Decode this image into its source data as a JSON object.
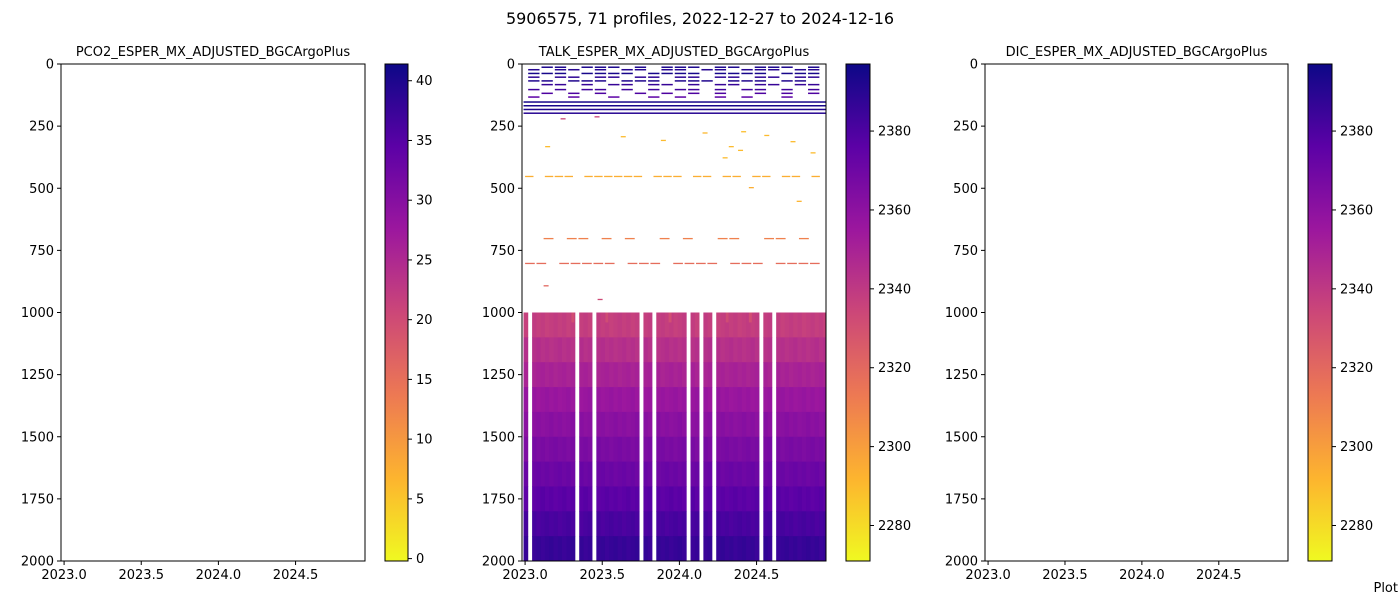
{
  "figure": {
    "suptitle": "5906575, 71 profiles, 2022-12-27 to 2024-12-16",
    "footer_note": "Plot"
  },
  "colormap": {
    "name": "plasma_r",
    "stops": [
      "#f0f921",
      "#fdb42f",
      "#ed7953",
      "#cc4778",
      "#9c179e",
      "#5c01a6",
      "#0d0887"
    ]
  },
  "chart_data": [
    {
      "type": "heatmap",
      "title": "PCO2_ESPER_MX_ADJUSTED_BGCArgoPlus",
      "xlabel": "",
      "ylabel": "",
      "xlim": [
        2022.98,
        2024.95
      ],
      "ylim": [
        2000,
        0
      ],
      "y_inverted": true,
      "xticks": [
        2023.0,
        2023.5,
        2024.0,
        2024.5
      ],
      "xtick_labels": [
        "2023.0",
        "2023.5",
        "2024.0",
        "2024.5"
      ],
      "yticks": [
        0,
        250,
        500,
        750,
        1000,
        1250,
        1500,
        1750,
        2000
      ],
      "ytick_labels": [
        "0",
        "250",
        "500",
        "750",
        "1000",
        "1250",
        "1500",
        "1750",
        "2000"
      ],
      "colorbar": {
        "range": [
          -0.2,
          41.4
        ],
        "ticks": [
          0,
          5,
          10,
          15,
          20,
          25,
          30,
          35,
          40
        ],
        "tick_labels": [
          "0",
          "5",
          "10",
          "15",
          "20",
          "25",
          "30",
          "35",
          "40"
        ]
      },
      "cells": []
    },
    {
      "type": "heatmap",
      "title": "TALK_ESPER_MX_ADJUSTED_BGCArgoPlus",
      "xlabel": "",
      "ylabel": "",
      "xlim": [
        2022.98,
        2024.95
      ],
      "ylim": [
        2000,
        0
      ],
      "y_inverted": true,
      "xticks": [
        2023.0,
        2023.5,
        2024.0,
        2024.5
      ],
      "xtick_labels": [
        "2023.0",
        "2023.5",
        "2024.0",
        "2024.5"
      ],
      "yticks": [
        0,
        250,
        500,
        750,
        1000,
        1250,
        1500,
        1750,
        2000
      ],
      "ytick_labels": [
        "0",
        "250",
        "500",
        "750",
        "1000",
        "1250",
        "1500",
        "1750",
        "2000"
      ],
      "colorbar": {
        "range": [
          2271,
          2397
        ],
        "ticks": [
          2280,
          2300,
          2320,
          2340,
          2360,
          2380
        ],
        "tick_labels": [
          "2280",
          "2300",
          "2320",
          "2340",
          "2360",
          "2380"
        ]
      },
      "profile_time_range": [
        2022.99,
        2024.96
      ],
      "profile_count": 71,
      "missing_profile_times": [
        2023.02,
        2023.35,
        2023.44,
        2023.75,
        2023.83,
        2024.06,
        2024.14,
        2024.22,
        2024.54,
        2024.62
      ],
      "deep_layers": [
        {
          "depth_top": 1000,
          "depth_bottom": 1100,
          "value": 2338
        },
        {
          "depth_top": 1100,
          "depth_bottom": 1200,
          "value": 2344
        },
        {
          "depth_top": 1200,
          "depth_bottom": 1300,
          "value": 2350
        },
        {
          "depth_top": 1300,
          "depth_bottom": 1400,
          "value": 2356
        },
        {
          "depth_top": 1400,
          "depth_bottom": 1500,
          "value": 2361
        },
        {
          "depth_top": 1500,
          "depth_bottom": 1600,
          "value": 2366
        },
        {
          "depth_top": 1600,
          "depth_bottom": 1700,
          "value": 2371
        },
        {
          "depth_top": 1700,
          "depth_bottom": 1800,
          "value": 2376
        },
        {
          "depth_top": 1800,
          "depth_bottom": 1900,
          "value": 2381
        },
        {
          "depth_top": 1900,
          "depth_bottom": 2000,
          "value": 2386
        }
      ],
      "deep_top_variants": [
        {
          "t": 2023.3,
          "value": 2331
        },
        {
          "t": 2023.52,
          "value": 2332
        },
        {
          "t": 2023.93,
          "value": 2331
        },
        {
          "t": 2024.3,
          "value": 2332
        },
        {
          "t": 2024.45,
          "value": 2331
        }
      ],
      "upper_full_lines": [
        {
          "depth": 150,
          "value": 2394
        },
        {
          "depth": 165,
          "value": 2394
        },
        {
          "depth": 180,
          "value": 2392
        },
        {
          "depth": 195,
          "value": 2390
        }
      ],
      "upper_dashed_rows": [
        {
          "depth": 10,
          "value": 2393,
          "t0": 2023.02,
          "t1": 2024.92,
          "on": [
            0,
            1,
            1,
            0,
            1,
            1,
            1,
            0,
            1,
            0,
            1,
            1,
            1,
            0,
            1,
            1,
            0,
            1,
            1,
            1,
            0,
            1
          ]
        },
        {
          "depth": 20,
          "value": 2390,
          "t0": 2023.02,
          "t1": 2024.92,
          "on": [
            1,
            0,
            1,
            1,
            0,
            1,
            0,
            1,
            1,
            0,
            1,
            1,
            0,
            1,
            1,
            0,
            1,
            1,
            1,
            0,
            1,
            1
          ]
        },
        {
          "depth": 35,
          "value": 2394,
          "t0": 2023.02,
          "t1": 2024.92,
          "on": [
            1,
            1,
            1,
            0,
            1,
            1,
            1,
            1,
            0,
            1,
            1,
            1,
            1,
            0,
            1,
            1,
            1,
            1,
            0,
            1,
            1,
            1
          ]
        },
        {
          "depth": 50,
          "value": 2388,
          "t0": 2023.02,
          "t1": 2024.92,
          "on": [
            1,
            0,
            1,
            1,
            0,
            1,
            1,
            0,
            1,
            1,
            0,
            1,
            1,
            0,
            1,
            1,
            0,
            1,
            1,
            0,
            1,
            1
          ]
        },
        {
          "depth": 65,
          "value": 2392,
          "t0": 2023.02,
          "t1": 2024.92,
          "on": [
            1,
            1,
            0,
            1,
            1,
            1,
            0,
            1,
            1,
            1,
            0,
            1,
            1,
            1,
            0,
            1,
            1,
            1,
            0,
            1,
            1,
            0
          ]
        },
        {
          "depth": 80,
          "value": 2386,
          "t0": 2023.02,
          "t1": 2024.92,
          "on": [
            0,
            1,
            1,
            0,
            1,
            0,
            1,
            1,
            0,
            1,
            1,
            0,
            1,
            0,
            1,
            1,
            0,
            1,
            1,
            0,
            1,
            1
          ]
        },
        {
          "depth": 100,
          "value": 2383,
          "t0": 2023.02,
          "t1": 2024.92,
          "on": [
            1,
            0,
            1,
            0,
            1,
            1,
            0,
            1,
            0,
            1,
            0,
            1,
            1,
            0,
            1,
            0,
            1,
            1,
            0,
            1,
            0,
            1
          ]
        },
        {
          "depth": 115,
          "value": 2380,
          "t0": 2023.02,
          "t1": 2024.92,
          "on": [
            0,
            1,
            0,
            1,
            0,
            1,
            0,
            0,
            1,
            0,
            1,
            0,
            1,
            0,
            1,
            0,
            0,
            1,
            0,
            1,
            0,
            1
          ]
        },
        {
          "depth": 130,
          "value": 2376,
          "t0": 2023.02,
          "t1": 2024.92,
          "on": [
            1,
            0,
            0,
            1,
            0,
            0,
            1,
            0,
            0,
            1,
            0,
            1,
            0,
            0,
            1,
            0,
            1,
            0,
            0,
            1,
            0,
            0
          ]
        }
      ],
      "scattered_segments": [
        {
          "t": 2023.23,
          "depth": 218,
          "value": 2334
        },
        {
          "t": 2023.45,
          "depth": 210,
          "value": 2335
        },
        {
          "t": 2023.13,
          "depth": 330,
          "value": 2290
        },
        {
          "t": 2023.62,
          "depth": 290,
          "value": 2290
        },
        {
          "t": 2023.88,
          "depth": 305,
          "value": 2290
        },
        {
          "t": 2024.15,
          "depth": 275,
          "value": 2291
        },
        {
          "t": 2024.32,
          "depth": 330,
          "value": 2290
        },
        {
          "t": 2024.38,
          "depth": 345,
          "value": 2290
        },
        {
          "t": 2024.4,
          "depth": 270,
          "value": 2289
        },
        {
          "t": 2024.55,
          "depth": 285,
          "value": 2290
        },
        {
          "t": 2024.72,
          "depth": 310,
          "value": 2290
        },
        {
          "t": 2024.85,
          "depth": 355,
          "value": 2290
        },
        {
          "t": 2024.28,
          "depth": 375,
          "value": 2290
        },
        {
          "t": 2024.45,
          "depth": 495,
          "value": 2294
        },
        {
          "t": 2024.76,
          "depth": 550,
          "value": 2292
        },
        {
          "t": 2023.12,
          "depth": 890,
          "value": 2320
        },
        {
          "t": 2023.47,
          "depth": 945,
          "value": 2333
        }
      ],
      "sparse_rows": [
        {
          "depth": 450,
          "value": 2294,
          "t0": 2023.0,
          "t1": 2024.92,
          "on": [
            1,
            0,
            1,
            1,
            1,
            0,
            1,
            1,
            1,
            1,
            1,
            1,
            0,
            1,
            1,
            1,
            0,
            1,
            1,
            0,
            1,
            1,
            0,
            1,
            1,
            0,
            1,
            1,
            0,
            1
          ]
        },
        {
          "depth": 700,
          "value": 2310,
          "t0": 2023.12,
          "t1": 2024.85,
          "on": [
            1,
            0,
            1,
            1,
            0,
            1,
            0,
            1,
            0,
            0,
            1,
            0,
            1,
            0,
            0,
            1,
            1,
            0,
            0,
            1,
            1,
            0,
            1
          ]
        },
        {
          "depth": 800,
          "value": 2318,
          "t0": 2023.0,
          "t1": 2024.92,
          "on": [
            1,
            1,
            0,
            1,
            1,
            1,
            1,
            1,
            0,
            1,
            1,
            1,
            0,
            1,
            1,
            1,
            1,
            0,
            1,
            1,
            1,
            0,
            1,
            1,
            1,
            1
          ]
        }
      ]
    },
    {
      "type": "heatmap",
      "title": "DIC_ESPER_MX_ADJUSTED_BGCArgoPlus",
      "xlabel": "",
      "ylabel": "",
      "xlim": [
        2022.98,
        2024.95
      ],
      "ylim": [
        2000,
        0
      ],
      "y_inverted": true,
      "xticks": [
        2023.0,
        2023.5,
        2024.0,
        2024.5
      ],
      "xtick_labels": [
        "2023.0",
        "2023.5",
        "2024.0",
        "2024.5"
      ],
      "yticks": [
        0,
        250,
        500,
        750,
        1000,
        1250,
        1500,
        1750,
        2000
      ],
      "ytick_labels": [
        "0",
        "250",
        "500",
        "750",
        "1000",
        "1250",
        "1500",
        "1750",
        "2000"
      ],
      "colorbar": {
        "range": [
          2271,
          2397
        ],
        "ticks": [
          2280,
          2300,
          2320,
          2340,
          2360,
          2380
        ],
        "tick_labels": [
          "2280",
          "2300",
          "2320",
          "2340",
          "2360",
          "2380"
        ]
      },
      "cells": []
    }
  ]
}
